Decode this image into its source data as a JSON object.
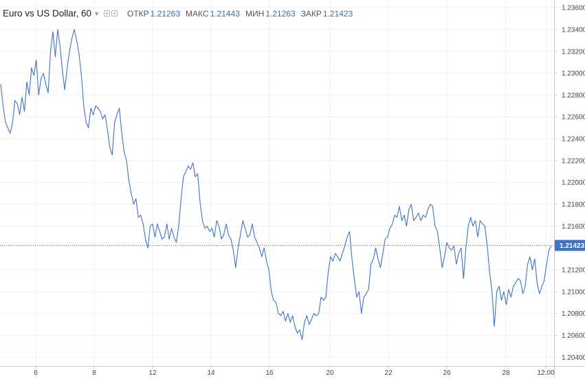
{
  "legend": {
    "symbol": "Euro vs US Dollar, 60",
    "open_label": "ОТКР",
    "open_value": "1.21263",
    "high_label": "МАКС",
    "high_value": "1.21443",
    "low_label": "МИН",
    "low_value": "1.21263",
    "close_label": "ЗАКР",
    "close_value": "1.21423"
  },
  "colors": {
    "line": "#3b73c8",
    "price_tag": "#3b73c8",
    "grid": "#eef0f2",
    "axis": "#c9ccd0"
  },
  "chart_data": {
    "type": "line",
    "title": "",
    "xlabel": "",
    "ylabel": "",
    "x_ticks": [
      "6",
      "8",
      "12",
      "14",
      "16",
      "20",
      "22",
      "26",
      "28",
      "12:00"
    ],
    "y_ticks": [
      "1.23600",
      "1.23400",
      "1.23200",
      "1.23000",
      "1.22800",
      "1.22600",
      "1.22400",
      "1.22200",
      "1.22000",
      "1.21800",
      "1.21600",
      "1.21200",
      "1.21000",
      "1.20800",
      "1.20600",
      "1.20400"
    ],
    "ylim": [
      1.2032,
      1.2367
    ],
    "last_price": 1.21423,
    "last_price_label": "1.21423",
    "grid": true,
    "series": [
      {
        "values": [
          1.229,
          1.227,
          1.2255,
          1.225,
          1.2245,
          1.2255,
          1.2275,
          1.2272,
          1.2262,
          1.2278,
          1.2265,
          1.2292,
          1.228,
          1.2305,
          1.2298,
          1.2312,
          1.228,
          1.2295,
          1.23,
          1.229,
          1.2282,
          1.232,
          1.2338,
          1.2315,
          1.234,
          1.2325,
          1.2302,
          1.2285,
          1.2305,
          1.232,
          1.2332,
          1.234,
          1.233,
          1.2318,
          1.2298,
          1.227,
          1.2255,
          1.225,
          1.2268,
          1.2262,
          1.227,
          1.2268,
          1.2265,
          1.2258,
          1.2262,
          1.2248,
          1.2232,
          1.2225,
          1.2255,
          1.2262,
          1.2268,
          1.2245,
          1.2228,
          1.222,
          1.2202,
          1.219,
          1.218,
          1.2185,
          1.2168,
          1.217,
          1.2162,
          1.2148,
          1.214,
          1.216,
          1.2162,
          1.215,
          1.2162,
          1.2155,
          1.2148,
          1.215,
          1.2162,
          1.2148,
          1.2158,
          1.215,
          1.2145,
          1.216,
          1.2185,
          1.2205,
          1.221,
          1.2215,
          1.2212,
          1.2218,
          1.2205,
          1.2208,
          1.2182,
          1.2165,
          1.2158,
          1.216,
          1.2155,
          1.2158,
          1.215,
          1.2165,
          1.216,
          1.2148,
          1.2152,
          1.2162,
          1.2152,
          1.2148,
          1.2138,
          1.2122,
          1.214,
          1.2152,
          1.2165,
          1.2158,
          1.215,
          1.2152,
          1.2162,
          1.215,
          1.2145,
          1.214,
          1.2132,
          1.214,
          1.2128,
          1.212,
          1.21,
          1.2092,
          1.209,
          1.208,
          1.2078,
          1.2082,
          1.2073,
          1.208,
          1.2072,
          1.2078,
          1.2068,
          1.2062,
          1.2065,
          1.2056,
          1.2072,
          1.2078,
          1.207,
          1.2075,
          1.208,
          1.2078,
          1.208,
          1.2095,
          1.2092,
          1.2095,
          1.2118,
          1.2132,
          1.2128,
          1.2135,
          1.2132,
          1.2128,
          1.2135,
          1.2142,
          1.215,
          1.2155,
          1.213,
          1.2112,
          1.2095,
          1.21,
          1.208,
          1.2095,
          1.2098,
          1.2102,
          1.2125,
          1.213,
          1.214,
          1.213,
          1.2122,
          1.2135,
          1.2148,
          1.215,
          1.2158,
          1.2162,
          1.217,
          1.2168,
          1.2178,
          1.2165,
          1.217,
          1.216,
          1.2175,
          1.218,
          1.2165,
          1.2168,
          1.2172,
          1.2165,
          1.217,
          1.2168,
          1.2175,
          1.218,
          1.2178,
          1.216,
          1.2155,
          1.214,
          1.2122,
          1.2132,
          1.2145,
          1.214,
          1.2138,
          1.2142,
          1.2125,
          1.2135,
          1.214,
          1.2112,
          1.214,
          1.216,
          1.2168,
          1.216,
          1.2165,
          1.215,
          1.2165,
          1.2162,
          1.216,
          1.2142,
          1.2118,
          1.21,
          1.2068,
          1.21,
          1.2105,
          1.2092,
          1.21,
          1.2088,
          1.2102,
          1.2095,
          1.2105,
          1.2108,
          1.2112,
          1.211,
          1.2098,
          1.2105,
          1.2125,
          1.2132,
          1.212,
          1.213,
          1.2108,
          1.2098,
          1.2105,
          1.211,
          1.2125,
          1.2138,
          1.2142
        ]
      }
    ]
  }
}
